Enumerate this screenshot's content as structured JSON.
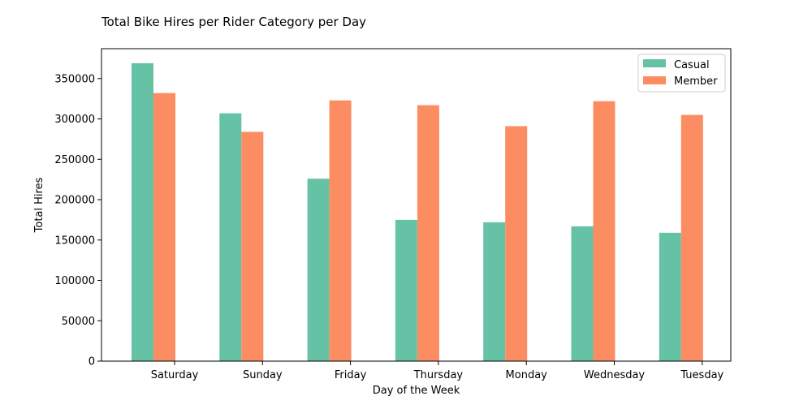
{
  "chart_data": {
    "type": "bar",
    "title": "Total Bike Hires per Rider Category per Day",
    "xlabel": "Day of the Week",
    "ylabel": "Total Hires",
    "categories": [
      "Saturday",
      "Sunday",
      "Friday",
      "Thursday",
      "Monday",
      "Wednesday",
      "Tuesday"
    ],
    "series": [
      {
        "name": "Casual",
        "color": "#66c2a5",
        "values": [
          369000,
          307000,
          226000,
          175000,
          172000,
          167000,
          159000
        ]
      },
      {
        "name": "Member",
        "color": "#fc8d62",
        "values": [
          332000,
          284000,
          323000,
          317000,
          291000,
          322000,
          305000
        ]
      }
    ],
    "ylim": [
      0,
      387000
    ],
    "yticks": [
      0,
      50000,
      100000,
      150000,
      200000,
      250000,
      300000,
      350000
    ],
    "ytick_labels": [
      "0",
      "50000",
      "100000",
      "150000",
      "200000",
      "250000",
      "300000",
      "350000"
    ],
    "grid": false,
    "legend_position": "top-right"
  }
}
